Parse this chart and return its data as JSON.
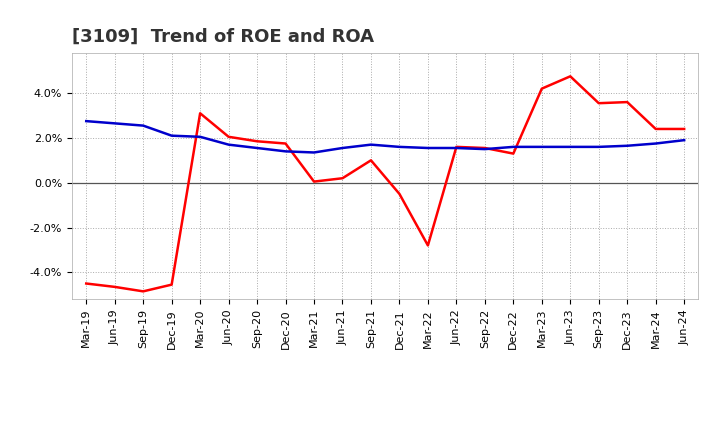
{
  "title": "[3109]  Trend of ROE and ROA",
  "x_labels": [
    "Mar-19",
    "Jun-19",
    "Sep-19",
    "Dec-19",
    "Mar-20",
    "Jun-20",
    "Sep-20",
    "Dec-20",
    "Mar-21",
    "Jun-21",
    "Sep-21",
    "Dec-21",
    "Mar-22",
    "Jun-22",
    "Sep-22",
    "Dec-22",
    "Mar-23",
    "Jun-23",
    "Sep-23",
    "Dec-23",
    "Mar-24",
    "Jun-24"
  ],
  "roe": [
    -4.5,
    -4.65,
    -4.85,
    -4.55,
    3.1,
    2.05,
    1.85,
    1.75,
    0.05,
    0.2,
    1.0,
    -0.5,
    -2.8,
    1.6,
    1.55,
    1.3,
    4.2,
    4.75,
    3.55,
    3.6,
    2.4,
    2.4
  ],
  "roa": [
    2.75,
    2.65,
    2.55,
    2.1,
    2.05,
    1.7,
    1.55,
    1.4,
    1.35,
    1.55,
    1.7,
    1.6,
    1.55,
    1.55,
    1.5,
    1.6,
    1.6,
    1.6,
    1.6,
    1.65,
    1.75,
    1.9
  ],
  "roe_color": "#ff0000",
  "roa_color": "#0000cc",
  "background_color": "#ffffff",
  "plot_bg_color": "#ffffff",
  "grid_color": "#aaaaaa",
  "grid_style": ":",
  "ylim": [
    -5.2,
    5.8
  ],
  "yticks": [
    -4.0,
    -2.0,
    0.0,
    2.0,
    4.0
  ],
  "ytick_labels": [
    "-4.0%",
    "-2.0%",
    "0.0%",
    "2.0%",
    "4.0%"
  ],
  "line_width": 1.8,
  "title_fontsize": 13,
  "tick_fontsize": 8,
  "legend_fontsize": 10,
  "title_color": "#333333"
}
